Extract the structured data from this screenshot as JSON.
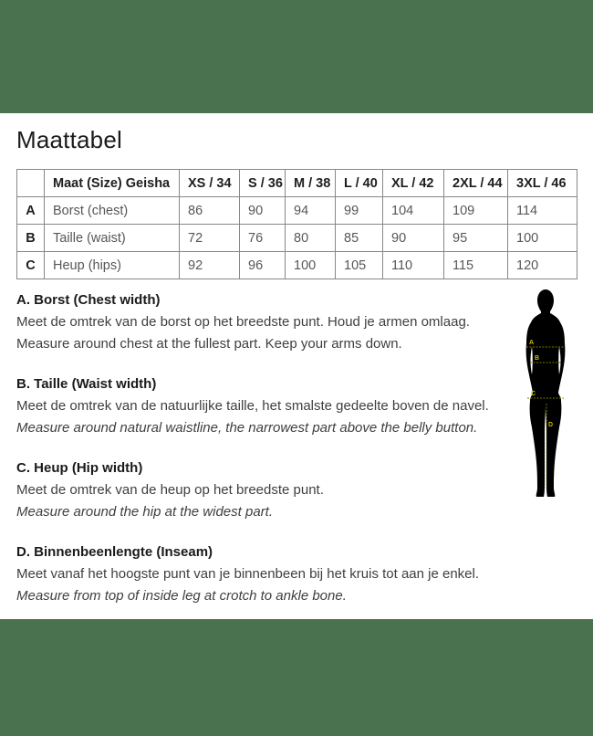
{
  "page": {
    "title": "Maattabel"
  },
  "colors": {
    "band_green": "#4a724f",
    "table_border": "#878787",
    "measure_line_olive": "#787800",
    "measure_label_yellow": "#cdbc00"
  },
  "size_table": {
    "columns": [
      "",
      "Maat (Size) Geisha",
      "XS / 34",
      "S / 36",
      "M / 38",
      "L / 40",
      "XL / 42",
      "2XL / 44",
      "3XL / 46"
    ],
    "rows": [
      {
        "letter": "A",
        "label": "Borst (chest)",
        "values": [
          "86",
          "90",
          "94",
          "99",
          "104",
          "109",
          "114"
        ]
      },
      {
        "letter": "B",
        "label": "Taille (waist)",
        "values": [
          "72",
          "76",
          "80",
          "85",
          "90",
          "95",
          "100"
        ]
      },
      {
        "letter": "C",
        "label": "Heup (hips)",
        "values": [
          "92",
          "96",
          "100",
          "105",
          "110",
          "115",
          "120"
        ]
      }
    ]
  },
  "sections": [
    {
      "heading": "A. Borst (Chest width)",
      "line_nl": "Meet de omtrek van de borst op het breedste punt. Houd je armen omlaag.",
      "line_en": "Measure around chest at the fullest part. Keep your arms down.",
      "en_italic": false
    },
    {
      "heading": "B. Taille (Waist width)",
      "line_nl": "Meet de omtrek van de natuurlijke taille, het smalste gedeelte boven de navel.",
      "line_en": "Measure around natural waistline, the narrowest part above the belly button.",
      "en_italic": true
    },
    {
      "heading": "C. Heup (Hip width)",
      "line_nl": "Meet de omtrek van de heup op het breedste punt.",
      "line_en": "Measure around the hip at the widest part.",
      "en_italic": true
    },
    {
      "heading": "D. Binnenbeenlengte (Inseam)",
      "line_nl": "Meet vanaf het hoogste punt van je binnenbeen bij het kruis tot aan je enkel.",
      "line_en": "Measure from top of inside leg at crotch to ankle bone.",
      "en_italic": true
    }
  ],
  "figure": {
    "labels": {
      "a": "A",
      "b": "B",
      "c": "C",
      "d": "D"
    }
  }
}
